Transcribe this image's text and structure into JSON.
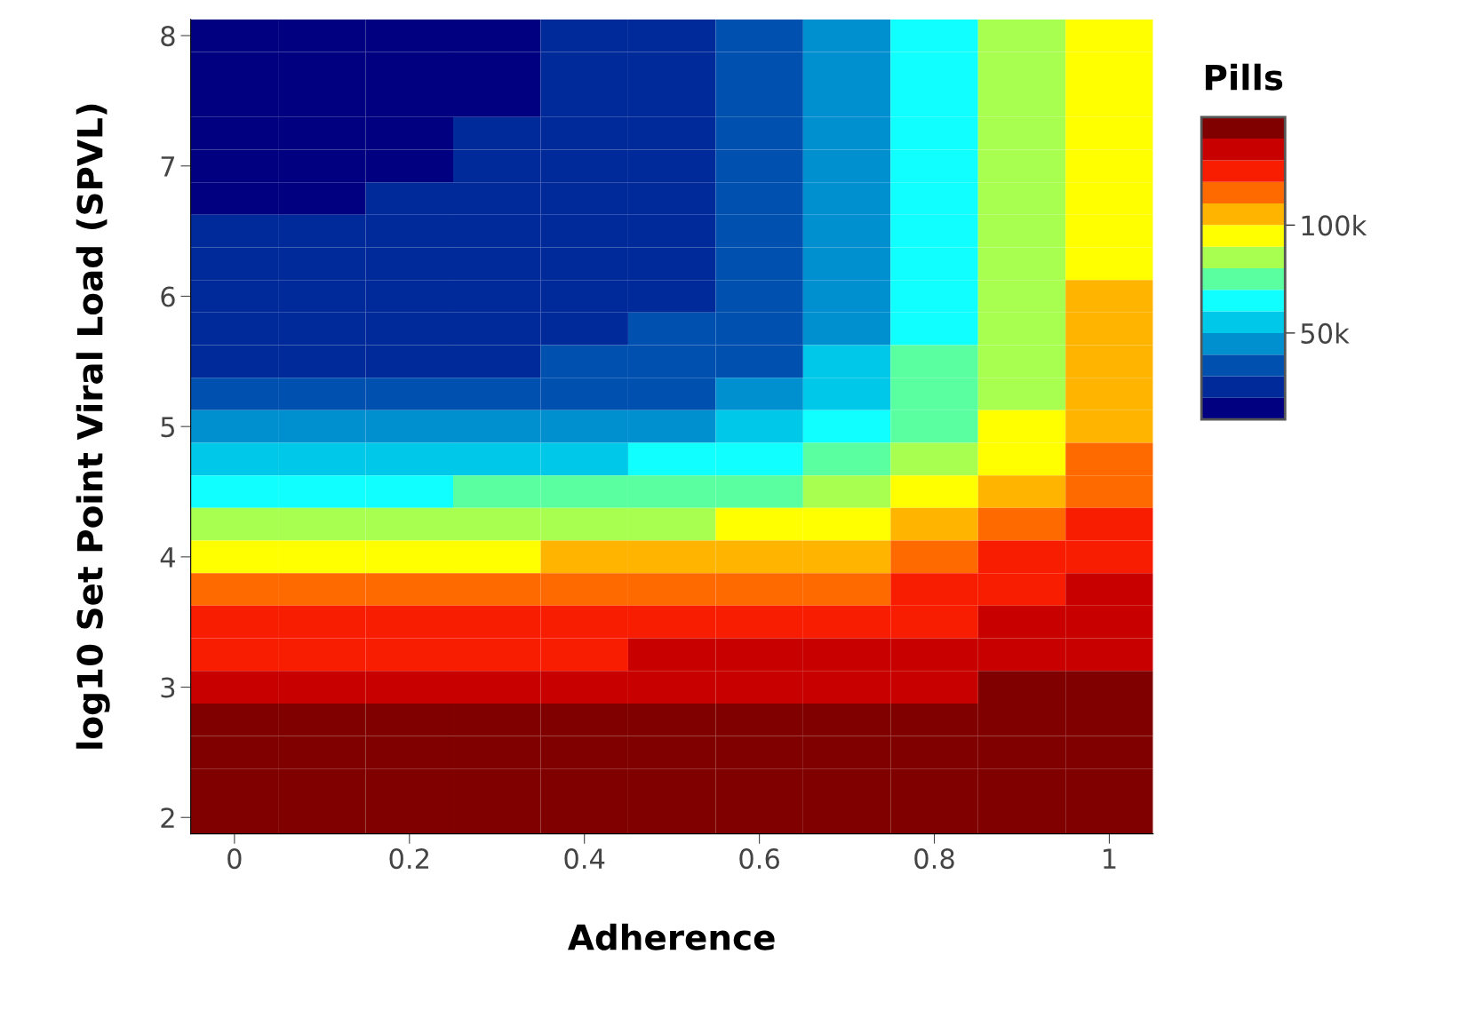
{
  "chart_data": {
    "type": "heatmap",
    "xlabel": "Adherence",
    "ylabel": "log10 Set Point Viral Load (SPVL)",
    "clabel": "Pills",
    "categories": [
      "0",
      null,
      "0.2",
      null,
      "0.4",
      null,
      "0.6",
      null,
      "0.8",
      null,
      "1"
    ],
    "y_categories": [
      "8",
      null,
      null,
      null,
      "7",
      null,
      null,
      null,
      "6",
      null,
      null,
      null,
      "5",
      null,
      null,
      null,
      "4",
      null,
      null,
      null,
      "3",
      null,
      null,
      null,
      "2"
    ],
    "clim": [
      10,
      150
    ],
    "cticks": [
      {
        "value": 50,
        "label": "50k"
      },
      {
        "value": 100,
        "label": "100k"
      }
    ],
    "colors": [
      "#000080",
      "#002a9a",
      "#0050b0",
      "#0090d0",
      "#00c8e8",
      "#10ffff",
      "#5affa0",
      "#a8ff50",
      "#ffff00",
      "#ffb400",
      "#ff6a00",
      "#f81c00",
      "#c80000",
      "#800000"
    ],
    "cells": [
      [
        17,
        17,
        17,
        18,
        22,
        27,
        35,
        47,
        65,
        81,
        92
      ],
      [
        17,
        17,
        18,
        19,
        23,
        27,
        35,
        47,
        65,
        81,
        93
      ],
      [
        18,
        18,
        18,
        19,
        24,
        28,
        35,
        47,
        65,
        81,
        94
      ],
      [
        18,
        18,
        19,
        20,
        24,
        28,
        35,
        47,
        65,
        82,
        95
      ],
      [
        19,
        19,
        19,
        22,
        25,
        28,
        36,
        47,
        65,
        82,
        96
      ],
      [
        19,
        19,
        20,
        23,
        26,
        28,
        36,
        47,
        65,
        82,
        97
      ],
      [
        20,
        20,
        22,
        24,
        27,
        29,
        36,
        48,
        65,
        82,
        98
      ],
      [
        21,
        21,
        23,
        25,
        27,
        29,
        37,
        48,
        66,
        83,
        99
      ],
      [
        23,
        24,
        25,
        27,
        28,
        29,
        37,
        48,
        66,
        83,
        100
      ],
      [
        26,
        26,
        27,
        28,
        29,
        30,
        38,
        49,
        67,
        84,
        102
      ],
      [
        28,
        28,
        29,
        29,
        30,
        30,
        39,
        52,
        70,
        86,
        105
      ],
      [
        33,
        33,
        33,
        34,
        34,
        36,
        43,
        59,
        75,
        88,
        107
      ],
      [
        43,
        43,
        43,
        45,
        46,
        49,
        56,
        67,
        79,
        92,
        109
      ],
      [
        56,
        56,
        56,
        58,
        59,
        62,
        67,
        75,
        86,
        99,
        113
      ],
      [
        69,
        69,
        69,
        70,
        71,
        74,
        78,
        85,
        94,
        107,
        118
      ],
      [
        83,
        83,
        83,
        84,
        85,
        87,
        90,
        97,
        104,
        114,
        124
      ],
      [
        99,
        99,
        99,
        99,
        100,
        102,
        104,
        108,
        114,
        121,
        129
      ],
      [
        111,
        111,
        111,
        111,
        111,
        113,
        115,
        118,
        122,
        127,
        132
      ],
      [
        120,
        120,
        120,
        120,
        120,
        122,
        123,
        125,
        128,
        132,
        135
      ],
      [
        128,
        128,
        128,
        128,
        128,
        130,
        130,
        131,
        133,
        136,
        138
      ],
      [
        134,
        134,
        134,
        134,
        135,
        135,
        136,
        136,
        138,
        140,
        140
      ],
      [
        140,
        140,
        140,
        140,
        140,
        140,
        140,
        140,
        141,
        141,
        141
      ],
      [
        142,
        142,
        142,
        142,
        142,
        142,
        142,
        142,
        142,
        143,
        143
      ],
      [
        143,
        143,
        143,
        143,
        143,
        143,
        143,
        143,
        144,
        144,
        144
      ],
      [
        145,
        145,
        145,
        145,
        145,
        145,
        145,
        145,
        145,
        145,
        145
      ]
    ]
  }
}
